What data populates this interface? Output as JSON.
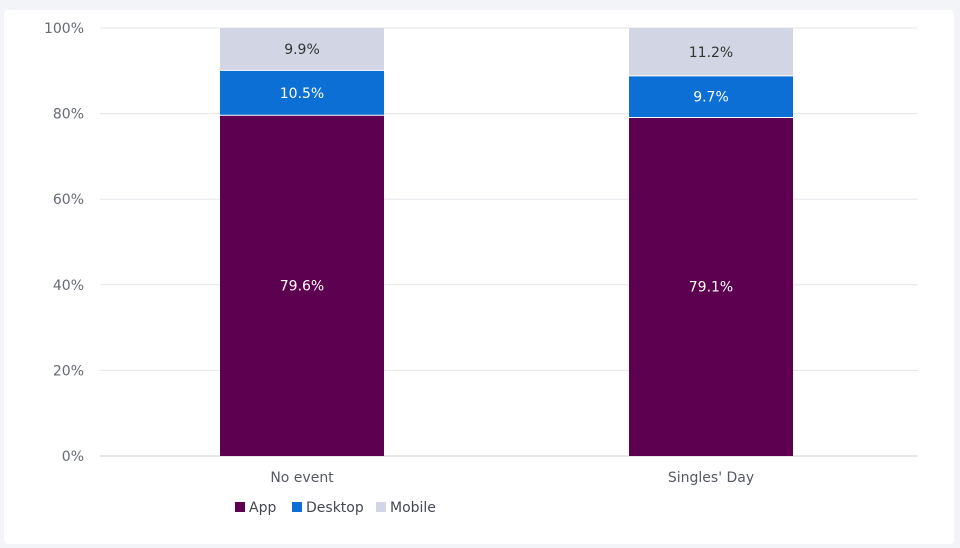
{
  "chart_data": {
    "type": "bar",
    "stacked": true,
    "categories": [
      "No event",
      "Singles' Day"
    ],
    "series": [
      {
        "name": "App",
        "color": "#5c004f",
        "label_color": "#ffffff",
        "values": [
          79.6,
          79.1
        ],
        "labels": [
          "79.6%",
          "79.1%"
        ]
      },
      {
        "name": "Desktop",
        "color": "#0b6fd6",
        "label_color": "#ffffff",
        "values": [
          10.5,
          9.7
        ],
        "labels": [
          "10.5%",
          "9.7%"
        ]
      },
      {
        "name": "Mobile",
        "color": "#d2d6e4",
        "label_color": "#333333",
        "values": [
          9.9,
          11.2
        ],
        "labels": [
          "9.9%",
          "11.2%"
        ]
      }
    ],
    "ylim": [
      0,
      100
    ],
    "yticks": [
      0,
      20,
      40,
      60,
      80,
      100
    ],
    "ytick_labels": [
      "0%",
      "20%",
      "40%",
      "60%",
      "80%",
      "100%"
    ],
    "grid": true,
    "legend_position": "bottom-left"
  }
}
